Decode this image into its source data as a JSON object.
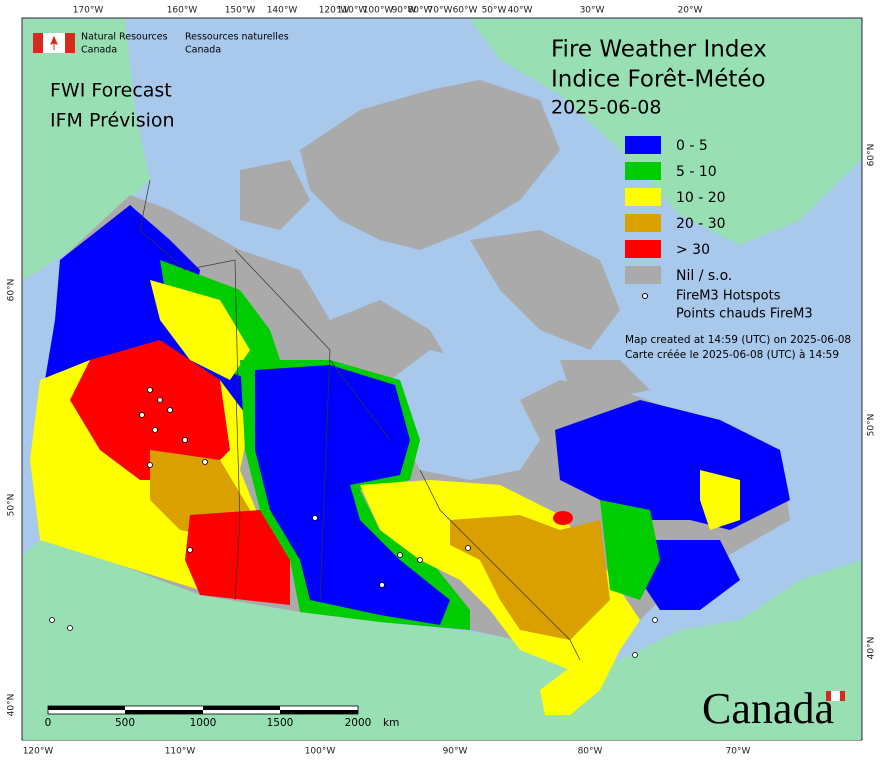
{
  "logo": {
    "en_line1": "Natural Resources",
    "en_line2": "Canada",
    "fr_line1": "Ressources naturelles",
    "fr_line2": "Canada"
  },
  "subtitle": {
    "en": "FWI Forecast",
    "fr": "IFM Prévision"
  },
  "title": {
    "en": "Fire Weather Index",
    "fr": "Indice Forêt-Météo",
    "date": "2025-06-08"
  },
  "legend": [
    {
      "label": "0 - 5",
      "color": "#0000ff"
    },
    {
      "label": "5 - 10",
      "color": "#00cc00"
    },
    {
      "label": "10 - 20",
      "color": "#ffff00"
    },
    {
      "label": "20 - 30",
      "color": "#d9a000"
    },
    {
      "label": "> 30",
      "color": "#ff0000"
    },
    {
      "label": "Nil / s.o.",
      "color": "#aaaaaa"
    }
  ],
  "hotspots": {
    "en": "FireM3 Hotspots",
    "fr": "Points chauds FireM3"
  },
  "created": {
    "en": "Map created at 14:59 (UTC) on 2025-06-08",
    "fr": "Carte créée le 2025-06-08 (UTC) à 14:59"
  },
  "scale": {
    "labels": [
      "0",
      "500",
      "1000",
      "1500",
      "2000"
    ],
    "unit": "km"
  },
  "wordmark": "Canada",
  "top_ticks": [
    "170°W",
    "160°W",
    "150°W",
    "140°W",
    "120°W",
    "110°W",
    "100°W",
    "90°W",
    "80°W",
    "70°W",
    "60°W",
    "50°W",
    "40°W",
    "30°W",
    "20°W"
  ],
  "bottom_ticks": [
    "120°W",
    "110°W",
    "100°W",
    "90°W",
    "80°W",
    "70°W"
  ],
  "left_ticks": [
    "60°N",
    "50°N",
    "40°N"
  ],
  "right_ticks": [
    "60°N",
    "50°N",
    "40°N"
  ]
}
